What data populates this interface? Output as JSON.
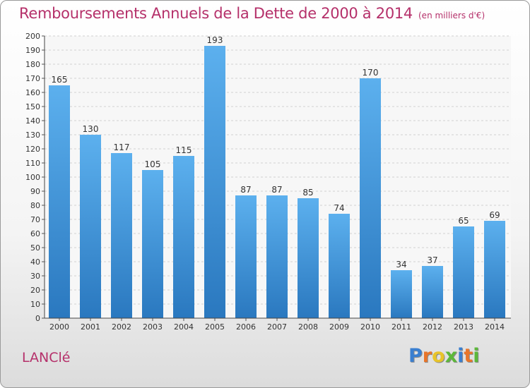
{
  "chart_data": {
    "type": "bar",
    "title": "Remboursements Annuels de la Dette de 2000 à 2014",
    "subtitle": "(en milliers d'€)",
    "categories": [
      "2000",
      "2001",
      "2002",
      "2003",
      "2004",
      "2005",
      "2006",
      "2007",
      "2008",
      "2009",
      "2010",
      "2011",
      "2012",
      "2013",
      "2014"
    ],
    "values": [
      165,
      130,
      117,
      105,
      115,
      193,
      87,
      87,
      85,
      74,
      170,
      34,
      37,
      65,
      69
    ],
    "ylim": [
      0,
      200
    ],
    "ytick_step": 10,
    "grid": true,
    "bar_color": "#3a8ad0"
  },
  "commune": "LANClé",
  "brand": {
    "letters": [
      "P",
      "r",
      "o",
      "x",
      "i",
      "t",
      "i"
    ],
    "colors": [
      "#3a7fd0",
      "#e8752a",
      "#e8c42a",
      "#5cb83a",
      "#3a7fd0",
      "#e8752a",
      "#5cb83a"
    ]
  }
}
